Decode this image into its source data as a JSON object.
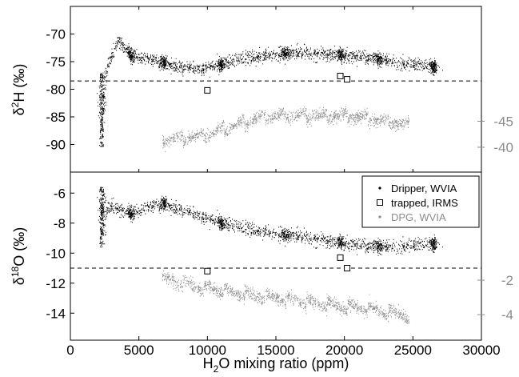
{
  "chart_data": {
    "type": "scatter",
    "x": {
      "label_main": "H",
      "label_sub": "2",
      "label_rest": "O mixing ratio (ppm)",
      "lim": [
        0,
        30000
      ],
      "ticks": [
        0,
        5000,
        10000,
        15000,
        20000,
        25000,
        30000
      ],
      "tick_labels": [
        "0",
        "5000",
        "10000",
        "15000",
        "20000",
        "25000",
        "30000"
      ]
    },
    "legend": {
      "placement": "top-right of lower panel",
      "entries": [
        {
          "label": "Dripper, WVIA",
          "marker": "dot",
          "color": "#000000"
        },
        {
          "label": "trapped, IRMS",
          "marker": "open-square",
          "color": "#000000"
        },
        {
          "label": "DPG, WVIA",
          "marker": "dot",
          "color": "#8c8c8c"
        }
      ]
    },
    "panels": [
      {
        "id": "d2H",
        "ylabel_main": "δ",
        "ylabel_sup": "2",
        "ylabel_rest": "H (‰)",
        "ylim": [
          -95,
          -65
        ],
        "ticks": [
          -90,
          -85,
          -80,
          -75,
          -70
        ],
        "tick_labels": [
          "-90",
          "-85",
          "-80",
          "-75",
          "-70"
        ],
        "right_axis": {
          "color": "#8c8c8c",
          "ticks_at_left_value": [
            -90.5,
            -85.8
          ],
          "tick_labels": [
            "-40",
            "-45"
          ]
        },
        "reference_line": -78.5,
        "trapped_irms": [
          [
            10000,
            -80.2
          ],
          [
            19700,
            -77.6
          ],
          [
            20200,
            -78.2
          ]
        ],
        "dripper_profile": [
          [
            2300,
            -84
          ],
          [
            2700,
            -76
          ],
          [
            3500,
            -71
          ],
          [
            4400,
            -74
          ],
          [
            5500,
            -74.5
          ],
          [
            6800,
            -75.2
          ],
          [
            8000,
            -76
          ],
          [
            9500,
            -76.5
          ],
          [
            11000,
            -75.5
          ],
          [
            12500,
            -74.5
          ],
          [
            14000,
            -74
          ],
          [
            15700,
            -73.5
          ],
          [
            17500,
            -73.5
          ],
          [
            19700,
            -73.8
          ],
          [
            21500,
            -74.2
          ],
          [
            23000,
            -74.8
          ],
          [
            24500,
            -75.4
          ],
          [
            26500,
            -76
          ]
        ],
        "dpg_profile": [
          [
            6700,
            -89
          ],
          [
            8000,
            -89
          ],
          [
            9500,
            -88.5
          ],
          [
            11000,
            -87.5
          ],
          [
            12500,
            -86.2
          ],
          [
            14000,
            -85.2
          ],
          [
            15500,
            -84.8
          ],
          [
            17500,
            -84.8
          ],
          [
            19700,
            -84.8
          ],
          [
            21500,
            -85.2
          ],
          [
            23000,
            -85.8
          ],
          [
            24700,
            -86.6
          ]
        ]
      },
      {
        "id": "d18O",
        "ylabel_main": "δ",
        "ylabel_sup": "18",
        "ylabel_rest": "O (‰)",
        "ylim": [
          -15.8,
          -4.6
        ],
        "ticks": [
          -14,
          -12,
          -10,
          -8,
          -6
        ],
        "tick_labels": [
          "-14",
          "-12",
          "-10",
          "-8",
          "-6"
        ],
        "right_axis": {
          "color": "#8c8c8c",
          "ticks_at_left_value": [
            -11.8,
            -14.1
          ],
          "tick_labels": [
            "-2",
            "-4"
          ]
        },
        "reference_line": -11.0,
        "trapped_irms": [
          [
            10000,
            -11.2
          ],
          [
            19700,
            -10.3
          ],
          [
            20200,
            -11.0
          ]
        ],
        "dripper_profile": [
          [
            2300,
            -7.5
          ],
          [
            3000,
            -6.9
          ],
          [
            4500,
            -7.4
          ],
          [
            5500,
            -7.0
          ],
          [
            6800,
            -6.7
          ],
          [
            8000,
            -7.1
          ],
          [
            9500,
            -7.6
          ],
          [
            11000,
            -8.0
          ],
          [
            12500,
            -8.3
          ],
          [
            14000,
            -8.6
          ],
          [
            15700,
            -8.8
          ],
          [
            17500,
            -9.0
          ],
          [
            19700,
            -9.3
          ],
          [
            21500,
            -9.5
          ],
          [
            23000,
            -9.6
          ],
          [
            24500,
            -9.5
          ],
          [
            26500,
            -9.4
          ]
        ],
        "dpg_profile": [
          [
            6700,
            -11.7
          ],
          [
            8000,
            -12.0
          ],
          [
            9500,
            -12.3
          ],
          [
            11000,
            -12.5
          ],
          [
            12500,
            -12.7
          ],
          [
            14000,
            -12.9
          ],
          [
            15500,
            -13.0
          ],
          [
            17500,
            -13.3
          ],
          [
            19700,
            -13.5
          ],
          [
            21500,
            -13.7
          ],
          [
            23000,
            -13.9
          ],
          [
            24700,
            -14.2
          ]
        ]
      }
    ],
    "grid": false
  }
}
